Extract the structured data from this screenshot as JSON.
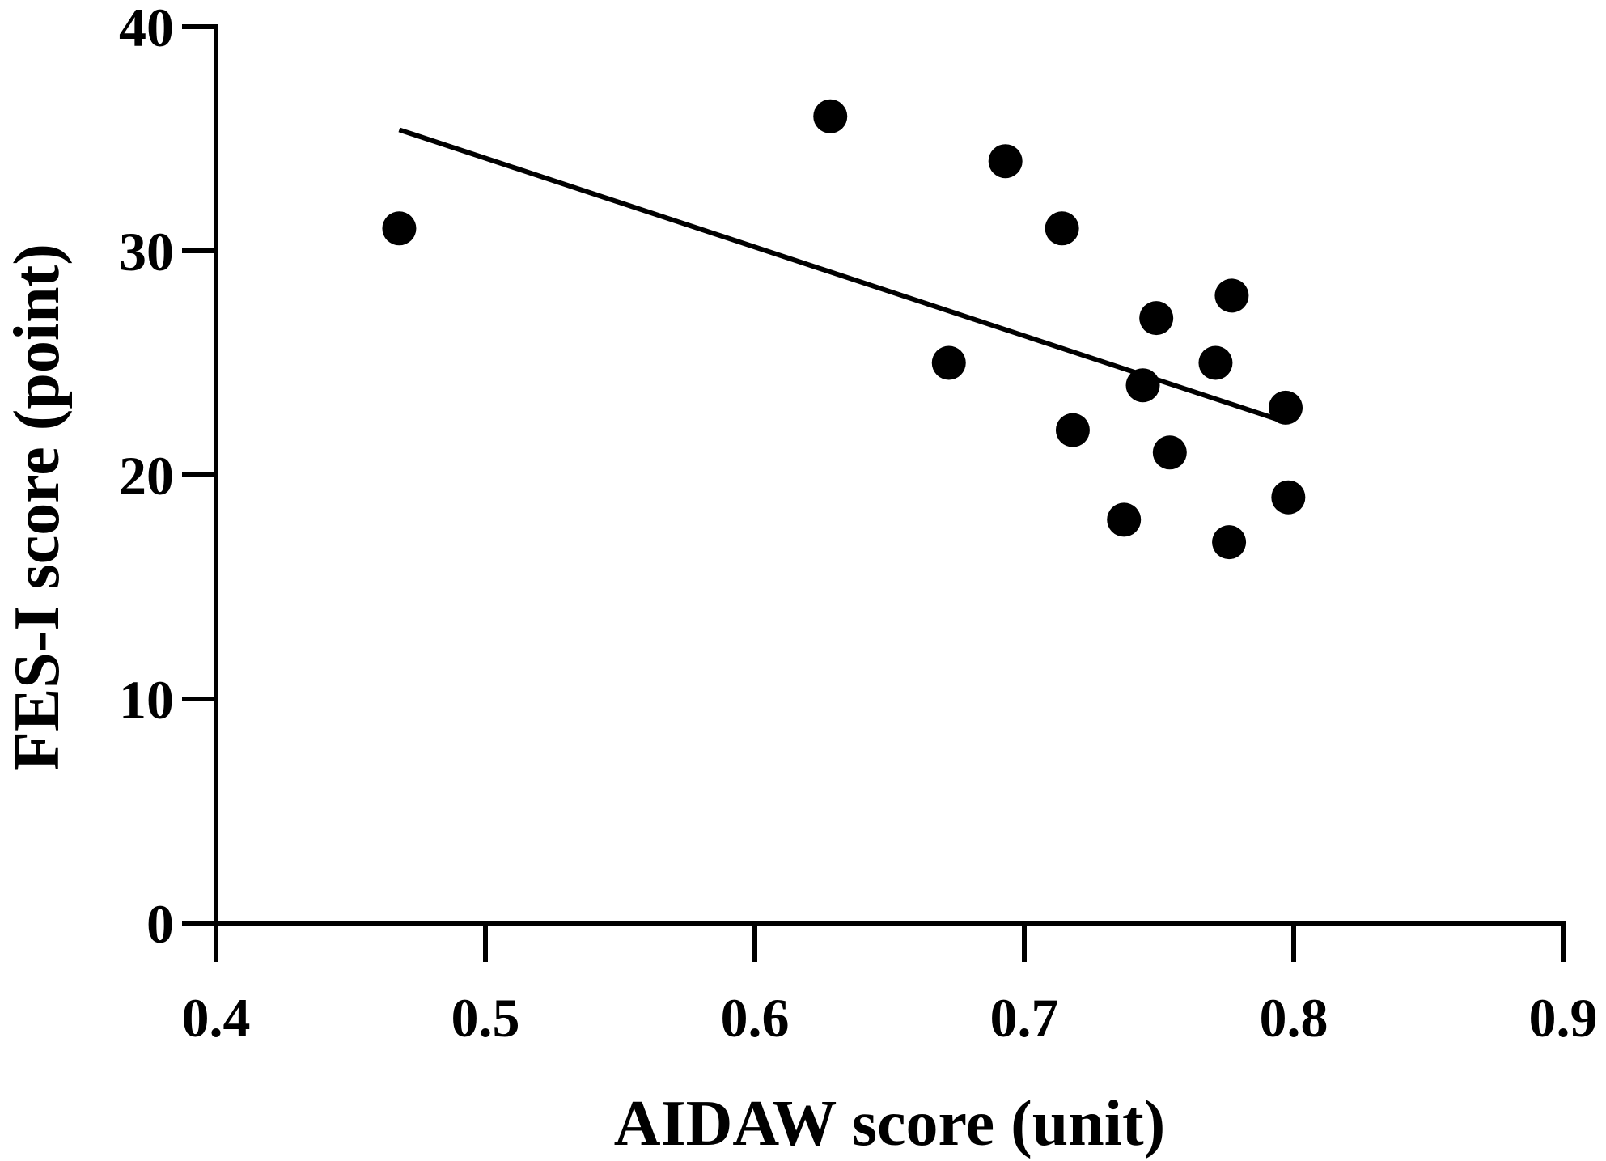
{
  "chart_data": {
    "type": "scatter",
    "title": "",
    "xlabel": "AIDAW score (unit)",
    "ylabel": "FES-I score (point)",
    "xlim": [
      0.4,
      0.9
    ],
    "ylim": [
      0,
      40
    ],
    "xticks": [
      0.4,
      0.5,
      0.6,
      0.7,
      0.8,
      0.9
    ],
    "xtick_labels": [
      "0.4",
      "0.5",
      "0.6",
      "0.7",
      "0.8",
      "0.9"
    ],
    "yticks": [
      0,
      10,
      20,
      30,
      40
    ],
    "ytick_labels": [
      "0",
      "10",
      "20",
      "30",
      "40"
    ],
    "grid": false,
    "legend": "none",
    "point_color": "#000000",
    "points": [
      {
        "x": 0.468,
        "y": 31
      },
      {
        "x": 0.628,
        "y": 36
      },
      {
        "x": 0.672,
        "y": 25
      },
      {
        "x": 0.693,
        "y": 34
      },
      {
        "x": 0.714,
        "y": 31
      },
      {
        "x": 0.718,
        "y": 22
      },
      {
        "x": 0.737,
        "y": 18
      },
      {
        "x": 0.744,
        "y": 24
      },
      {
        "x": 0.749,
        "y": 27
      },
      {
        "x": 0.754,
        "y": 21
      },
      {
        "x": 0.771,
        "y": 25
      },
      {
        "x": 0.776,
        "y": 17
      },
      {
        "x": 0.777,
        "y": 28
      },
      {
        "x": 0.797,
        "y": 23
      },
      {
        "x": 0.798,
        "y": 19
      }
    ],
    "trendline": {
      "type": "linear",
      "x": [
        0.468,
        0.796
      ],
      "y": [
        35.4,
        22.4
      ]
    }
  }
}
